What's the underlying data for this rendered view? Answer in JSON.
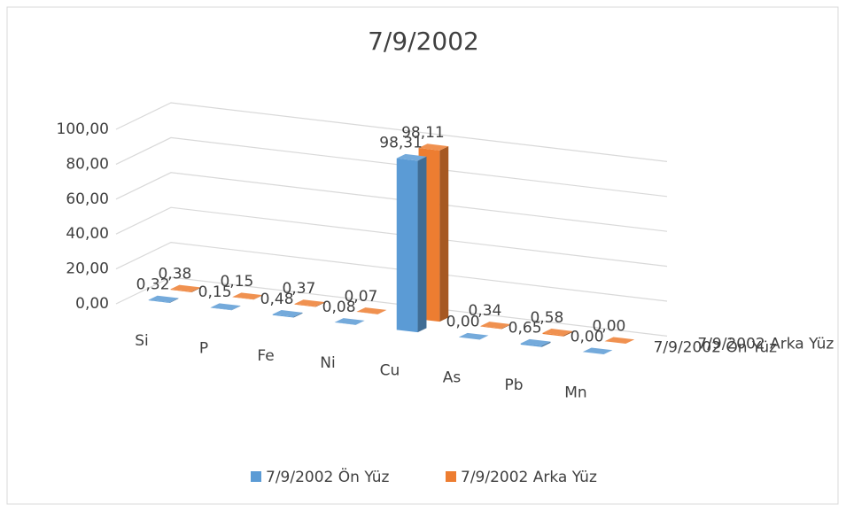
{
  "chart_data": {
    "type": "bar3d",
    "title": "7/9/2002",
    "categories": [
      "Si",
      "P",
      "Fe",
      "Ni",
      "Cu",
      "As",
      "Pb",
      "Mn"
    ],
    "series": [
      {
        "name": "7/9/2002 Ön Yüz",
        "color": "#5b9bd5",
        "values": [
          0.32,
          0.15,
          0.48,
          0.08,
          98.31,
          0.0,
          0.65,
          0.0
        ],
        "value_labels": [
          "0,32",
          "0,15",
          "0,48",
          "0,08",
          "98,31",
          "0,00",
          "0,65",
          "0,00"
        ]
      },
      {
        "name": "7/9/2002 Arka Yüz",
        "color": "#ed7d31",
        "values": [
          0.38,
          0.15,
          0.37,
          0.07,
          98.11,
          0.34,
          0.58,
          0.0
        ],
        "value_labels": [
          "0,38",
          "0,15",
          "0,37",
          "0,07",
          "98,11",
          "0,34",
          "0,58",
          "0,00"
        ]
      }
    ],
    "ylim": [
      0,
      100
    ],
    "yticks": [
      {
        "value": 0,
        "label": "0,00"
      },
      {
        "value": 20,
        "label": "20,00"
      },
      {
        "value": 40,
        "label": "40,00"
      },
      {
        "value": 60,
        "label": "60,00"
      },
      {
        "value": 80,
        "label": "80,00"
      },
      {
        "value": 100,
        "label": "100,00"
      }
    ],
    "grid": true,
    "legend": "bottom"
  }
}
